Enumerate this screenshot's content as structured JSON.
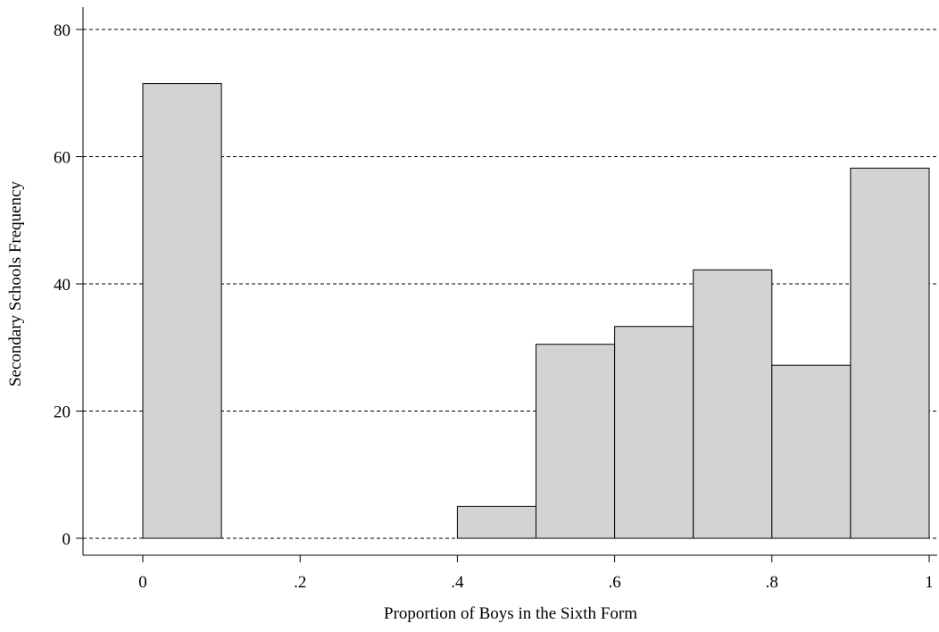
{
  "chart_data": {
    "type": "bar",
    "title": "",
    "xlabel": "Proportion of Boys in the Sixth Form",
    "ylabel": "Secondary Schools Frequency",
    "xlim": [
      0,
      1
    ],
    "ylim": [
      0,
      80
    ],
    "grid": true,
    "bin_width": 0.1,
    "bins": [
      {
        "start": 0.0,
        "end": 0.1,
        "value": 71.5
      },
      {
        "start": 0.4,
        "end": 0.5,
        "value": 5
      },
      {
        "start": 0.5,
        "end": 0.6,
        "value": 30.5
      },
      {
        "start": 0.6,
        "end": 0.7,
        "value": 33.3
      },
      {
        "start": 0.7,
        "end": 0.8,
        "value": 42.2
      },
      {
        "start": 0.8,
        "end": 0.9,
        "value": 27.2
      },
      {
        "start": 0.9,
        "end": 1.0,
        "value": 58.2
      }
    ],
    "x_ticks": [
      {
        "value": 0,
        "label": "0"
      },
      {
        "value": 0.2,
        "label": ".2"
      },
      {
        "value": 0.4,
        "label": ".4"
      },
      {
        "value": 0.6,
        "label": ".6"
      },
      {
        "value": 0.8,
        "label": ".8"
      },
      {
        "value": 1,
        "label": "1"
      }
    ],
    "y_ticks": [
      {
        "value": 0,
        "label": "0"
      },
      {
        "value": 20,
        "label": "20"
      },
      {
        "value": 40,
        "label": "40"
      },
      {
        "value": 60,
        "label": "60"
      },
      {
        "value": 80,
        "label": "80"
      }
    ],
    "colors": {
      "bar_fill": "#d3d3d3",
      "bar_stroke": "#000000"
    }
  }
}
